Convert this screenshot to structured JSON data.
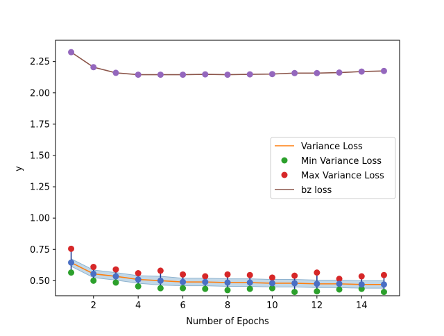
{
  "chart_data": {
    "type": "line",
    "title": "",
    "xlabel": "Number of Epochs",
    "ylabel": "y",
    "xlim": [
      0.3,
      15.7
    ],
    "ylim": [
      0.38,
      2.42
    ],
    "x": [
      1,
      2,
      3,
      4,
      5,
      6,
      7,
      8,
      9,
      10,
      11,
      12,
      13,
      14,
      15
    ],
    "xticks": [
      2,
      4,
      6,
      8,
      10,
      12,
      14
    ],
    "yticks": [
      0.5,
      0.75,
      1.0,
      1.25,
      1.5,
      1.75,
      2.0,
      2.25
    ],
    "xtick_labels": [
      "2",
      "4",
      "6",
      "8",
      "10",
      "12",
      "14"
    ],
    "ytick_labels": [
      "0.50",
      "0.75",
      "1.00",
      "1.25",
      "1.50",
      "1.75",
      "2.00",
      "2.25"
    ],
    "grid": false,
    "legend_position": "center-right",
    "legend": [
      "Variance Loss",
      "Min Variance Loss",
      "Max Variance Loss",
      "bz loss"
    ],
    "series": [
      {
        "name": "Variance Loss",
        "color": "#ff7f0e",
        "values": [
          0.645,
          0.555,
          0.535,
          0.51,
          0.5,
          0.49,
          0.49,
          0.485,
          0.485,
          0.48,
          0.48,
          0.475,
          0.475,
          0.47,
          0.47
        ]
      },
      {
        "name": "Min Variance Loss",
        "color": "#2ca02c",
        "values": [
          0.565,
          0.5,
          0.485,
          0.455,
          0.44,
          0.44,
          0.435,
          0.425,
          0.435,
          0.44,
          0.41,
          0.415,
          0.43,
          0.435,
          0.41
        ]
      },
      {
        "name": "Max Variance Loss",
        "color": "#d62728",
        "values": [
          0.755,
          0.61,
          0.59,
          0.56,
          0.58,
          0.55,
          0.535,
          0.55,
          0.545,
          0.525,
          0.54,
          0.565,
          0.515,
          0.535,
          0.545
        ]
      },
      {
        "name": "bz loss",
        "color": "#8c564b",
        "marker_color": "#9467bd",
        "values": [
          2.325,
          2.205,
          2.16,
          2.145,
          2.145,
          2.145,
          2.148,
          2.145,
          2.148,
          2.15,
          2.158,
          2.158,
          2.162,
          2.17,
          2.175
        ]
      }
    ],
    "band": {
      "name": "variance band",
      "color": "#aecbe0",
      "lower": [
        0.615,
        0.525,
        0.505,
        0.48,
        0.465,
        0.46,
        0.46,
        0.455,
        0.455,
        0.45,
        0.45,
        0.445,
        0.445,
        0.44,
        0.44
      ],
      "upper": [
        0.675,
        0.585,
        0.565,
        0.54,
        0.535,
        0.52,
        0.52,
        0.515,
        0.515,
        0.51,
        0.51,
        0.505,
        0.505,
        0.5,
        0.5
      ]
    },
    "errorbar_color": "#1f3a93",
    "mean_marker_color": "#4a6fc4"
  }
}
